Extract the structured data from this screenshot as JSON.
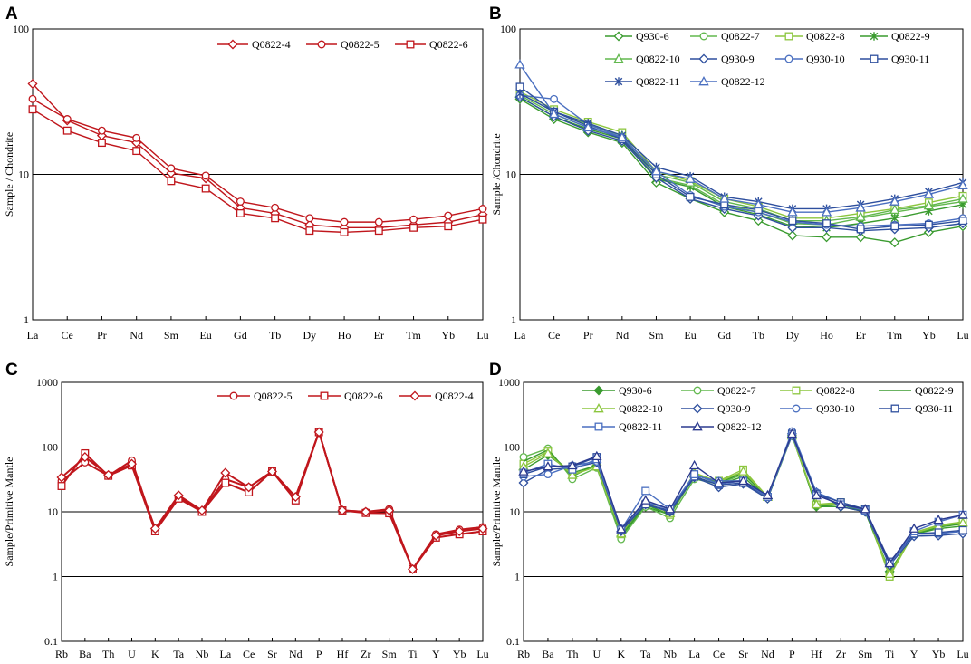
{
  "figure": {
    "panels": [
      "A",
      "B",
      "C",
      "D"
    ]
  },
  "colors": {
    "red": "#c0161c",
    "green1": "#3a9b2f",
    "green2": "#62b84e",
    "green3": "#8cc63e",
    "blue1": "#2e4f9e",
    "blue2": "#4a6fc0",
    "blue3": "#2b3a8f"
  },
  "chart_data": [
    {
      "panel": "A",
      "type": "line",
      "yscale": "log",
      "ylabel": "Sample / Chondrite",
      "xlabel": "",
      "ylim": [
        1,
        100
      ],
      "yticks": [
        "1",
        "10",
        "100"
      ],
      "gridlines_at": [
        10
      ],
      "legend_position": "top-right",
      "categories": [
        "La",
        "Ce",
        "Pr",
        "Nd",
        "Sm",
        "Eu",
        "Gd",
        "Tb",
        "Dy",
        "Ho",
        "Er",
        "Tm",
        "Yb",
        "Lu"
      ],
      "series": [
        {
          "name": "Q0822-4",
          "marker": "diamond",
          "color": "#c0161c",
          "values": [
            42,
            23.5,
            18.5,
            16.5,
            10.2,
            9.4,
            5.9,
            5.4,
            4.5,
            4.3,
            4.3,
            4.5,
            4.7,
            5.3
          ]
        },
        {
          "name": "Q0822-5",
          "marker": "circle",
          "color": "#c0161c",
          "values": [
            33,
            24,
            20,
            17.8,
            11.0,
            9.8,
            6.5,
            5.9,
            5.0,
            4.7,
            4.7,
            4.9,
            5.2,
            5.8
          ]
        },
        {
          "name": "Q0822-6",
          "marker": "square",
          "color": "#c0161c",
          "values": [
            28,
            20,
            16.5,
            14.5,
            9.0,
            8.0,
            5.4,
            5.0,
            4.1,
            4.0,
            4.1,
            4.3,
            4.4,
            4.9
          ]
        }
      ]
    },
    {
      "panel": "B",
      "type": "line",
      "yscale": "log",
      "ylabel": "Sample /Chondrite",
      "xlabel": "",
      "ylim": [
        1,
        100
      ],
      "yticks": [
        "1",
        "10",
        "100"
      ],
      "gridlines_at": [
        10
      ],
      "legend_position": "top",
      "categories": [
        "La",
        "Ce",
        "Pr",
        "Nd",
        "Sm",
        "Eu",
        "Gd",
        "Tb",
        "Dy",
        "Ho",
        "Er",
        "Tm",
        "Yb",
        "Lu"
      ],
      "series": [
        {
          "name": "Q930-6",
          "marker": "diamond",
          "color": "#3a9b2f",
          "values": [
            33,
            24,
            19.5,
            16.5,
            8.8,
            6.8,
            5.5,
            4.8,
            3.8,
            3.7,
            3.7,
            3.4,
            4.0,
            4.4
          ]
        },
        {
          "name": "Q0822-7",
          "marker": "circle",
          "color": "#62b84e",
          "values": [
            35,
            26,
            21,
            18,
            9.5,
            8.4,
            6.2,
            5.5,
            4.6,
            4.5,
            5.0,
            5.5,
            6.0,
            6.5
          ]
        },
        {
          "name": "Q0822-8",
          "marker": "square",
          "color": "#8cc63e",
          "values": [
            37,
            28,
            23,
            19.5,
            10.5,
            9.0,
            6.8,
            6.0,
            5.0,
            5.0,
            5.4,
            5.8,
            6.4,
            7.1
          ]
        },
        {
          "name": "Q0822-9",
          "marker": "star",
          "color": "#3a9b2f",
          "values": [
            34,
            25,
            20.5,
            17.5,
            9.3,
            8.2,
            6.0,
            5.3,
            4.4,
            4.3,
            4.6,
            5.0,
            5.6,
            6.2
          ]
        },
        {
          "name": "Q0822-10",
          "marker": "triangle",
          "color": "#62b84e",
          "values": [
            36,
            27,
            22,
            18.5,
            10.0,
            8.8,
            6.5,
            5.8,
            4.8,
            4.8,
            5.1,
            5.7,
            6.1,
            6.8
          ]
        },
        {
          "name": "Q930-9",
          "marker": "diamond",
          "color": "#2e4f9e",
          "values": [
            34,
            25,
            20,
            17,
            9.5,
            6.8,
            5.8,
            5.2,
            4.3,
            4.3,
            4.1,
            4.2,
            4.3,
            4.6
          ]
        },
        {
          "name": "Q930-10",
          "marker": "circle",
          "color": "#4a6fc0",
          "values": [
            35,
            33,
            22,
            18,
            10.5,
            7.2,
            6.0,
            5.5,
            4.7,
            4.5,
            4.4,
            4.5,
            4.6,
            5.0
          ]
        },
        {
          "name": "Q930-11",
          "marker": "square",
          "color": "#2e4f9e",
          "values": [
            40,
            27,
            21.5,
            17.5,
            10.0,
            7.0,
            6.2,
            5.7,
            4.8,
            4.6,
            4.2,
            4.4,
            4.5,
            4.8
          ]
        },
        {
          "name": "Q0822-11",
          "marker": "star",
          "color": "#2e4f9e",
          "values": [
            36,
            27,
            22.5,
            18.5,
            11.2,
            9.7,
            7.0,
            6.5,
            5.8,
            5.8,
            6.2,
            6.8,
            7.6,
            8.8
          ]
        },
        {
          "name": "Q0822-12",
          "marker": "triangle",
          "color": "#4a6fc0",
          "values": [
            57,
            26,
            21,
            18,
            10.5,
            9.3,
            6.8,
            6.2,
            5.5,
            5.5,
            5.9,
            6.5,
            7.3,
            8.4
          ]
        }
      ]
    },
    {
      "panel": "C",
      "type": "line",
      "yscale": "log",
      "ylabel": "Sample/Primitive Mantle",
      "xlabel": "",
      "ylim": [
        0.1,
        1000
      ],
      "yticks": [
        "0.1",
        "1",
        "10",
        "100",
        "1000"
      ],
      "gridlines_at": [
        1,
        10,
        100
      ],
      "legend_position": "top-right",
      "categories": [
        "Rb",
        "Ba",
        "Th",
        "U",
        "K",
        "Ta",
        "Nb",
        "La",
        "Ce",
        "Sr",
        "Nd",
        "P",
        "Hf",
        "Zr",
        "Sm",
        "Ti",
        "Y",
        "Yb",
        "Lu"
      ],
      "series": [
        {
          "name": "Q0822-5",
          "marker": "circle",
          "color": "#c0161c",
          "values": [
            30,
            58,
            36,
            62,
            5.2,
            17,
            10.2,
            32,
            24,
            42,
            17,
            170,
            10.5,
            10,
            11,
            1.3,
            4.5,
            5.3,
            5.8
          ]
        },
        {
          "name": "Q0822-6",
          "marker": "square",
          "color": "#c0161c",
          "values": [
            25,
            80,
            36,
            52,
            5.0,
            16,
            10.0,
            28,
            20,
            42,
            15,
            170,
            10.5,
            9.6,
            9.5,
            1.3,
            4.0,
            4.5,
            5.0
          ]
        },
        {
          "name": "Q0822-4",
          "marker": "diamond",
          "color": "#c0161c",
          "values": [
            34,
            70,
            37,
            55,
            5.5,
            18,
            10.5,
            40,
            24,
            42,
            17,
            170,
            10.5,
            10,
            10.5,
            1.3,
            4.3,
            5.0,
            5.5
          ]
        }
      ]
    },
    {
      "panel": "D",
      "type": "line",
      "yscale": "log",
      "ylabel": "Sample/Primitive Mantle",
      "xlabel": "",
      "ylim": [
        0.1,
        1000
      ],
      "yticks": [
        "0.1",
        "1",
        "10",
        "100",
        "1000"
      ],
      "gridlines_at": [
        1,
        10,
        100
      ],
      "legend_position": "top",
      "categories": [
        "Rb",
        "Ba",
        "Th",
        "U",
        "K",
        "Ta",
        "Nb",
        "La",
        "Ce",
        "Sr",
        "Nd",
        "P",
        "Hf",
        "Zr",
        "Sm",
        "Ti",
        "Y",
        "Yb",
        "Lu"
      ],
      "series": [
        {
          "name": "Q930-6",
          "marker": "diamond-filled",
          "color": "#3a9b2f",
          "values": [
            45,
            75,
            40,
            52,
            4.2,
            12,
            9,
            35,
            26,
            35,
            16,
            150,
            12,
            12,
            10,
            1.2,
            4.5,
            5.5,
            6.0
          ]
        },
        {
          "name": "Q0822-7",
          "marker": "circle",
          "color": "#62b84e",
          "values": [
            70,
            95,
            32,
            48,
            3.8,
            12,
            8,
            32,
            27,
            38,
            17,
            155,
            13,
            13,
            10,
            1.1,
            4.6,
            6.0,
            6.5
          ]
        },
        {
          "name": "Q0822-8",
          "marker": "square",
          "color": "#8cc63e",
          "values": [
            55,
            85,
            38,
            50,
            4.5,
            13,
            9,
            36,
            30,
            45,
            17,
            150,
            13,
            14,
            11,
            1.0,
            4.8,
            6.2,
            7.0
          ]
        },
        {
          "name": "Q0822-9",
          "marker": "none",
          "color": "#3a9b2f",
          "values": [
            60,
            90,
            35,
            55,
            4.3,
            13,
            9,
            38,
            28,
            40,
            16,
            160,
            12,
            13,
            10,
            1.2,
            4.5,
            5.8,
            6.5
          ]
        },
        {
          "name": "Q0822-10",
          "marker": "triangle",
          "color": "#8cc63e",
          "values": [
            50,
            80,
            37,
            50,
            4.6,
            14,
            9.5,
            40,
            29,
            42,
            17,
            150,
            13,
            13,
            11,
            1.1,
            4.7,
            6.0,
            6.8
          ]
        },
        {
          "name": "Q930-9",
          "marker": "diamond",
          "color": "#2e4f9e",
          "values": [
            28,
            45,
            48,
            58,
            5.0,
            13,
            10,
            34,
            24,
            27,
            16,
            160,
            20,
            12,
            10,
            1.5,
            4.2,
            4.3,
            4.6
          ]
        },
        {
          "name": "Q930-10",
          "marker": "circle",
          "color": "#4a6fc0",
          "values": [
            35,
            38,
            52,
            60,
            5.5,
            14,
            11,
            36,
            30,
            30,
            17,
            175,
            20,
            14,
            11,
            1.6,
            4.5,
            4.6,
            5.0
          ]
        },
        {
          "name": "Q930-11",
          "marker": "square",
          "color": "#2e4f9e",
          "values": [
            38,
            50,
            50,
            70,
            5.2,
            13,
            10.5,
            35,
            26,
            28,
            17,
            160,
            19,
            14,
            11,
            1.7,
            4.6,
            4.8,
            5.2
          ]
        },
        {
          "name": "Q0822-11",
          "marker": "square",
          "color": "#4a6fc0",
          "values": [
            40,
            55,
            45,
            65,
            5.3,
            21,
            11,
            38,
            27,
            30,
            17,
            150,
            18,
            13,
            10.5,
            1.6,
            5.0,
            7.0,
            9.0
          ]
        },
        {
          "name": "Q0822-12",
          "marker": "triangle",
          "color": "#2b3a8f",
          "values": [
            42,
            50,
            52,
            72,
            5.4,
            15,
            11,
            52,
            28,
            30,
            18,
            160,
            18,
            13,
            11,
            1.6,
            5.5,
            7.5,
            9.0
          ]
        }
      ]
    }
  ]
}
